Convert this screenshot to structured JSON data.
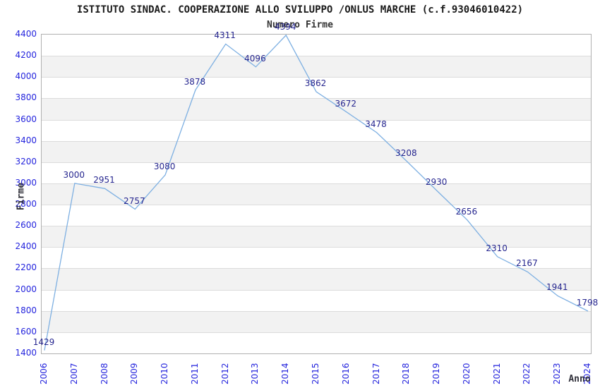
{
  "header": {
    "title": "ISTITUTO SINDAC. COOPERAZIONE ALLO SVILUPPO /ONLUS MARCHE (c.f.93046010422)",
    "subtitle": "Numero Firme"
  },
  "chart_data": {
    "type": "line",
    "title": "ISTITUTO SINDAC. COOPERAZIONE ALLO SVILUPPO /ONLUS MARCHE (c.f.93046010422)",
    "subtitle": "Numero Firme",
    "xlabel": "Anno",
    "ylabel": "Firme",
    "x": [
      2006,
      2007,
      2008,
      2009,
      2010,
      2011,
      2012,
      2013,
      2014,
      2015,
      2016,
      2017,
      2018,
      2019,
      2020,
      2021,
      2022,
      2023,
      2024
    ],
    "values": [
      1429,
      3000,
      2951,
      2757,
      3080,
      3878,
      4311,
      4096,
      4394,
      3862,
      3672,
      3478,
      3208,
      2930,
      2656,
      2310,
      2167,
      1941,
      1798
    ],
    "ylim": [
      1400,
      4400
    ],
    "ytick_step": 200,
    "grid": "horizontal gridlines with alternating bands",
    "legend": "none",
    "data_labels_shown": true,
    "colors": {
      "line": "#7EB0E2",
      "tick_label": "#2424DD",
      "data_label": "#26268F",
      "band_alt": "#F2F2F2",
      "gridline": "#DCDCDC",
      "plot_border": "#B0B0B0"
    }
  }
}
